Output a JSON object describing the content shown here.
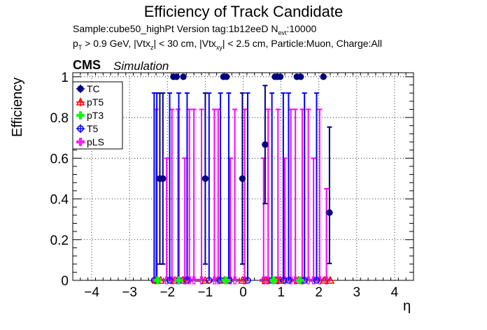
{
  "chart_data": {
    "type": "scatter",
    "title": "Efficiency of Track Candidate",
    "info": {
      "sample_text": "Sample:cube50_highPt   Version tag:1b12eeD  N",
      "nevt_sub": "evt",
      "nevt_value": ":10000",
      "cuts_p": "p",
      "cuts_p_sub": "T",
      "cuts_a": " > 0.9 GeV, |Vtx",
      "cuts_vtxz_sub": "z",
      "cuts_b": "| < 30 cm, |Vtx",
      "cuts_vtxxy_sub": "xy",
      "cuts_c": "| < 2.5 cm, Particle:Muon, Charge:All"
    },
    "cms_label": "CMS",
    "cms_sim_label": "Simulation",
    "xlabel": "η",
    "ylabel": "Efficiency",
    "xlim": [
      -4.5,
      4.5
    ],
    "ylim": [
      0,
      1.02
    ],
    "x_ticks": [
      "−4",
      "−3",
      "−2",
      "−1",
      "0",
      "1",
      "2",
      "3",
      "4"
    ],
    "x_tick_values": [
      -4,
      -3,
      -2,
      -1,
      0,
      1,
      2,
      3,
      4
    ],
    "y_ticks": [
      "0",
      "0.2",
      "0.4",
      "0.6",
      "0.8",
      "1"
    ],
    "y_tick_values": [
      0,
      0.2,
      0.4,
      0.6,
      0.8,
      1
    ],
    "grid": true,
    "legend_position": "top-left",
    "legend": [
      "TC",
      "pT5",
      "pT3",
      "T5",
      "pLS"
    ],
    "series": [
      {
        "name": "TC",
        "color": "#000080",
        "marker": "filled-circle",
        "x": [
          -2.2,
          -2.12,
          -1.84,
          -1.76,
          -1.58,
          -1.0,
          -0.52,
          -0.44,
          -0.02,
          0.58,
          0.84,
          0.9,
          0.98,
          1.42,
          1.52,
          2.12,
          2.28
        ],
        "y": [
          0.5,
          0.5,
          1.0,
          1.0,
          1.0,
          0.5,
          1.0,
          1.0,
          0.5,
          0.667,
          1.0,
          1.0,
          1.0,
          1.0,
          1.0,
          1.0,
          0.333
        ],
        "err_low": [
          0.42,
          0.42,
          0.0,
          0.0,
          0.0,
          0.42,
          0.0,
          0.0,
          0.42,
          0.29,
          0.0,
          0.0,
          0.0,
          0.0,
          0.0,
          0.0,
          0.25
        ],
        "err_high": [
          0.42,
          0.42,
          0.0,
          0.0,
          0.0,
          0.42,
          0.0,
          0.0,
          0.42,
          0.29,
          0.0,
          0.0,
          0.0,
          0.0,
          0.0,
          0.0,
          0.42
        ]
      },
      {
        "name": "T5",
        "color": "#0000ff",
        "marker": "open-circle",
        "x": [
          -2.35,
          -2.28,
          -1.94,
          -1.7,
          -1.48,
          -0.9,
          -0.6,
          -0.38,
          0.12,
          0.76,
          1.06,
          1.2,
          1.62,
          1.94
        ],
        "y": [
          0.0,
          0.0,
          0.0,
          0.0,
          0.0,
          0.0,
          0.0,
          0.0,
          0.0,
          0.0,
          0.0,
          0.0,
          0.0,
          0.0
        ],
        "err_low": [
          0,
          0,
          0,
          0,
          0,
          0,
          0,
          0,
          0,
          0,
          0,
          0,
          0,
          0
        ],
        "err_high": [
          0.92,
          0.92,
          0.92,
          0.92,
          0.92,
          0.92,
          0.92,
          0.92,
          0.92,
          0.92,
          0.92,
          0.92,
          0.92,
          0.92
        ]
      },
      {
        "name": "pLS",
        "color": "#ff00ff",
        "marker": "open-cross",
        "x": [
          -2.3,
          -2.02,
          -1.88,
          -1.72,
          -1.54,
          -1.42,
          -1.3,
          -1.1,
          -0.76,
          -0.66,
          -0.34,
          -0.22,
          0.04,
          0.54,
          0.66,
          0.92,
          1.1,
          1.26,
          1.38,
          1.56,
          1.72,
          1.86,
          2.02,
          2.2
        ],
        "y": [
          0.0,
          0.0,
          0.0,
          0.0,
          0.0,
          0.0,
          0.0,
          0.0,
          0.0,
          0.0,
          0.0,
          0.0,
          0.0,
          0.0,
          0.0,
          0.0,
          0.0,
          0.0,
          0.0,
          0.0,
          0.0,
          0.0,
          0.0,
          0.0
        ],
        "err_low": [
          0,
          0,
          0,
          0,
          0,
          0,
          0,
          0,
          0,
          0,
          0,
          0,
          0,
          0,
          0,
          0,
          0,
          0,
          0,
          0,
          0,
          0,
          0,
          0
        ],
        "err_high": [
          0.84,
          0.6,
          0.84,
          0.84,
          0.6,
          0.84,
          0.84,
          0.84,
          0.84,
          0.84,
          0.6,
          0.84,
          0.84,
          0.6,
          0.84,
          0.84,
          0.6,
          0.84,
          0.84,
          0.84,
          0.84,
          0.6,
          0.84,
          0.45
        ]
      },
      {
        "name": "pT5",
        "color": "#ff0000",
        "marker": "open-triangle",
        "x": [
          -2.3,
          -2.18,
          -1.8,
          -1.6,
          -1.0,
          -0.5,
          -0.02,
          0.6,
          0.86,
          0.98,
          1.46,
          2.14,
          2.3
        ],
        "y": [
          0,
          0,
          0,
          0,
          0,
          0,
          0,
          0,
          0,
          0,
          0,
          0,
          0
        ],
        "err_low": [
          0,
          0,
          0,
          0,
          0,
          0,
          0,
          0,
          0,
          0,
          0,
          0,
          0
        ],
        "err_high": [
          0,
          0,
          0,
          0,
          0,
          0,
          0,
          0,
          0,
          0,
          0,
          0,
          0
        ]
      },
      {
        "name": "pT3",
        "color": "#00ff00",
        "marker": "filled-cross",
        "x": [
          -2.26,
          -1.7,
          -0.46,
          0.8,
          1.5
        ],
        "y": [
          0,
          0,
          0,
          0,
          0
        ],
        "err_low": [
          0,
          0,
          0,
          0,
          0
        ],
        "err_high": [
          0,
          0,
          0,
          0,
          0
        ]
      }
    ]
  }
}
